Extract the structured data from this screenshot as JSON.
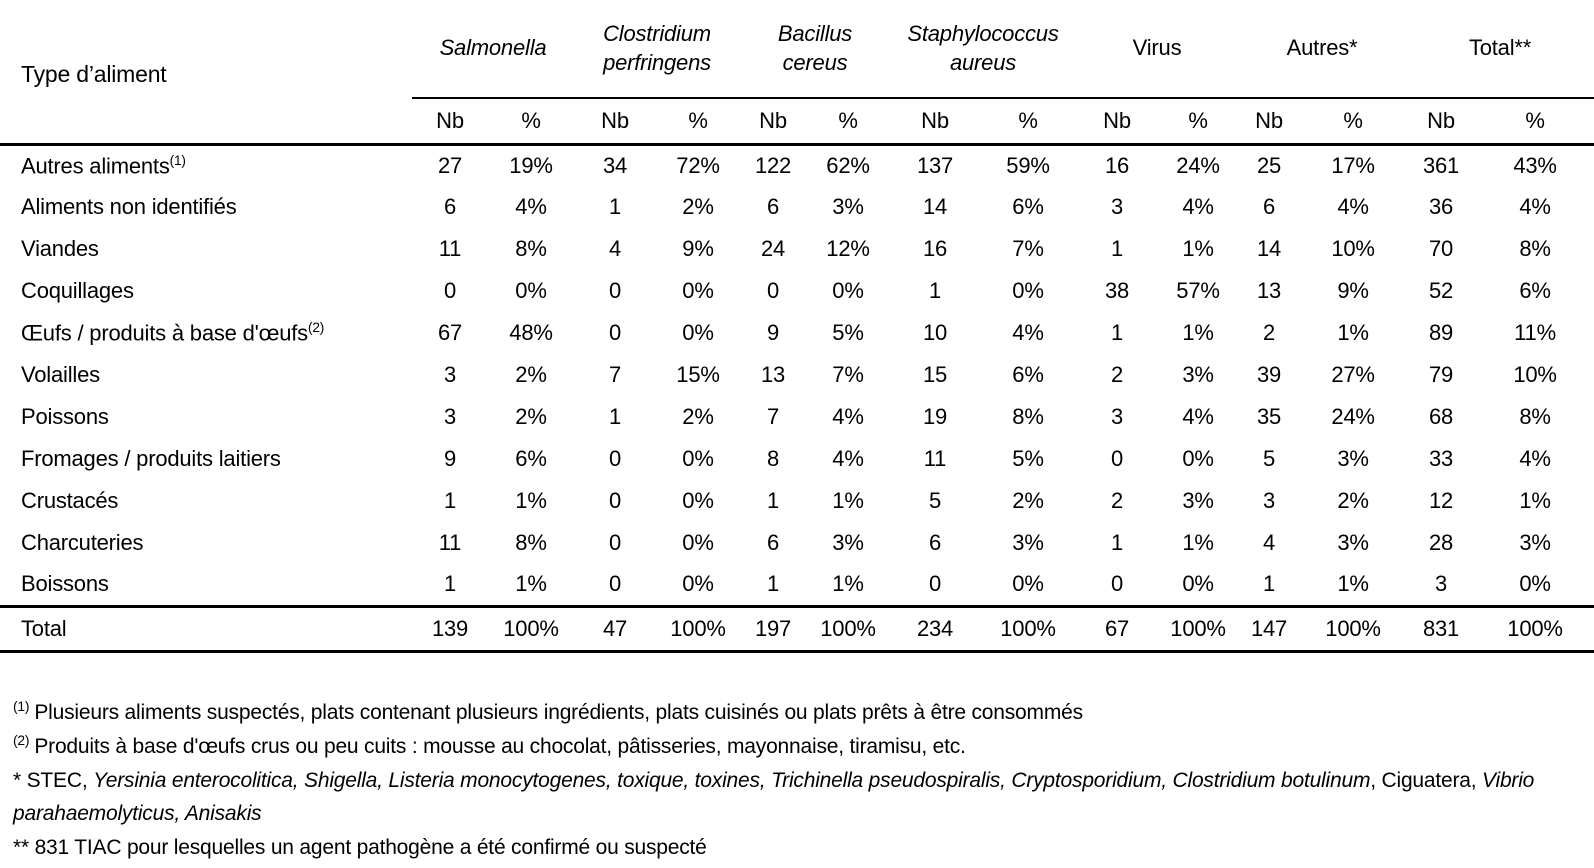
{
  "table": {
    "row_header": "Type d’aliment",
    "sub_headers": [
      "Nb",
      "%"
    ],
    "groups": [
      {
        "name": "Salmonella",
        "italic": true
      },
      {
        "name": "Clostridium\nperfringens",
        "italic": true
      },
      {
        "name": "Bacillus\ncereus",
        "italic": true
      },
      {
        "name": "Staphylococcus\naureus",
        "italic": true
      },
      {
        "name": "Virus",
        "italic": false
      },
      {
        "name": "Autres*",
        "italic": false
      },
      {
        "name": "Total**",
        "italic": false
      }
    ],
    "rows": [
      {
        "label": "Autres aliments",
        "sup": "(1)",
        "values": [
          "27",
          "19%",
          "34",
          "72%",
          "122",
          "62%",
          "137",
          "59%",
          "16",
          "24%",
          "25",
          "17%",
          "361",
          "43%"
        ]
      },
      {
        "label": "Aliments non identifiés",
        "sup": "",
        "values": [
          "6",
          "4%",
          "1",
          "2%",
          "6",
          "3%",
          "14",
          "6%",
          "3",
          "4%",
          "6",
          "4%",
          "36",
          "4%"
        ]
      },
      {
        "label": "Viandes",
        "sup": "",
        "values": [
          "11",
          "8%",
          "4",
          "9%",
          "24",
          "12%",
          "16",
          "7%",
          "1",
          "1%",
          "14",
          "10%",
          "70",
          "8%"
        ]
      },
      {
        "label": "Coquillages",
        "sup": "",
        "values": [
          "0",
          "0%",
          "0",
          "0%",
          "0",
          "0%",
          "1",
          "0%",
          "38",
          "57%",
          "13",
          "9%",
          "52",
          "6%"
        ]
      },
      {
        "label": "Œufs / produits à base d'œufs",
        "sup": "(2)",
        "values": [
          "67",
          "48%",
          "0",
          "0%",
          "9",
          "5%",
          "10",
          "4%",
          "1",
          "1%",
          "2",
          "1%",
          "89",
          "11%"
        ]
      },
      {
        "label": "Volailles",
        "sup": "",
        "values": [
          "3",
          "2%",
          "7",
          "15%",
          "13",
          "7%",
          "15",
          "6%",
          "2",
          "3%",
          "39",
          "27%",
          "79",
          "10%"
        ]
      },
      {
        "label": "Poissons",
        "sup": "",
        "values": [
          "3",
          "2%",
          "1",
          "2%",
          "7",
          "4%",
          "19",
          "8%",
          "3",
          "4%",
          "35",
          "24%",
          "68",
          "8%"
        ]
      },
      {
        "label": "Fromages / produits laitiers",
        "sup": "",
        "values": [
          "9",
          "6%",
          "0",
          "0%",
          "8",
          "4%",
          "11",
          "5%",
          "0",
          "0%",
          "5",
          "3%",
          "33",
          "4%"
        ]
      },
      {
        "label": "Crustacés",
        "sup": "",
        "values": [
          "1",
          "1%",
          "0",
          "0%",
          "1",
          "1%",
          "5",
          "2%",
          "2",
          "3%",
          "3",
          "2%",
          "12",
          "1%"
        ]
      },
      {
        "label": "Charcuteries",
        "sup": "",
        "values": [
          "11",
          "8%",
          "0",
          "0%",
          "6",
          "3%",
          "6",
          "3%",
          "1",
          "1%",
          "4",
          "3%",
          "28",
          "3%"
        ]
      },
      {
        "label": "Boissons",
        "sup": "",
        "values": [
          "1",
          "1%",
          "0",
          "0%",
          "1",
          "1%",
          "0",
          "0%",
          "0",
          "0%",
          "1",
          "1%",
          "3",
          "0%"
        ]
      }
    ],
    "total_row": {
      "label": "Total",
      "values": [
        "139",
        "100%",
        "47",
        "100%",
        "197",
        "100%",
        "234",
        "100%",
        "67",
        "100%",
        "147",
        "100%",
        "831",
        "100%"
      ]
    }
  },
  "footnotes": {
    "note1_sup": "(1)",
    "note1": "Plusieurs aliments suspectés, plats contenant plusieurs ingrédients, plats cuisinés ou plats prêts à être consommés",
    "note2_sup": "(2)",
    "note2": "Produits à base d'œufs crus ou peu cuits : mousse au chocolat, pâtisseries, mayonnaise, tiramisu, etc.",
    "star_prefix": "* STEC, ",
    "star_italic1": "Yersinia enterocolitica, Shigella, Listeria monocytogenes, toxique, toxines, Trichinella pseudospiralis, Cryptosporidium, Clostridium botulinum",
    "star_roman": ", Ciguatera, ",
    "star_italic2": "Vibrio parahaemolyticus, Anisakis",
    "doublestar": "** 831 TIAC pour lesquelles un agent pathogène a été confirmé ou suspecté"
  }
}
